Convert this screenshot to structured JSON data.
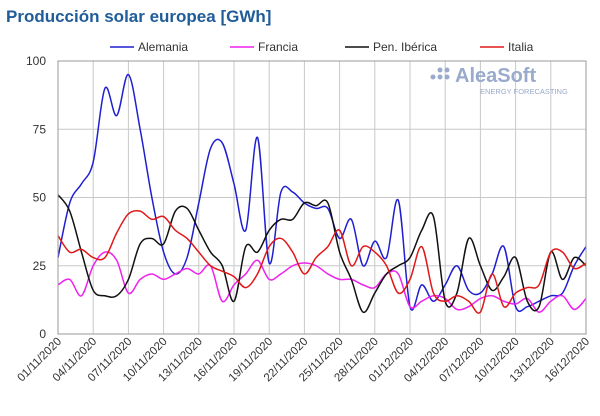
{
  "chart_data": {
    "type": "line",
    "title": "Producción solar europea [GWh]",
    "logo": {
      "name": "AleaSoft",
      "tagline": "ENERGY FORECASTING"
    },
    "categories": [
      "01/11/2020",
      null,
      null,
      "04/11/2020",
      null,
      null,
      "07/11/2020",
      null,
      null,
      "10/11/2020",
      null,
      null,
      "13/11/2020",
      null,
      null,
      "16/11/2020",
      null,
      null,
      "19/11/2020",
      null,
      null,
      "22/11/2020",
      null,
      null,
      "25/11/2020",
      null,
      null,
      "28/11/2020",
      null,
      null,
      "01/12/2020",
      null,
      null,
      "04/12/2020",
      null,
      null,
      "07/12/2020",
      null,
      null,
      "10/12/2020",
      null,
      null,
      "13/12/2020",
      null,
      null,
      "16/12/2020"
    ],
    "series": [
      {
        "name": "Alemania",
        "color": "#1f1fd0",
        "values": [
          28,
          48,
          55,
          63,
          90,
          80,
          95,
          75,
          50,
          30,
          22,
          28,
          48,
          68,
          70,
          55,
          38,
          72,
          26,
          52,
          52,
          48,
          46,
          46,
          35,
          42,
          25,
          34,
          28,
          49,
          10,
          18,
          12,
          18,
          25,
          16,
          15,
          22,
          32,
          10,
          10,
          12,
          14,
          15,
          25,
          32
        ]
      },
      {
        "name": "Francia",
        "color": "#ee22ee",
        "values": [
          18,
          20,
          14,
          25,
          30,
          27,
          15,
          20,
          22,
          20,
          22,
          24,
          22,
          25,
          12,
          18,
          22,
          27,
          20,
          22,
          25,
          26,
          25,
          22,
          20,
          20,
          18,
          17,
          22,
          22,
          10,
          12,
          14,
          13,
          9,
          10,
          13,
          14,
          12,
          11,
          13,
          8,
          12,
          14,
          9,
          13
        ]
      },
      {
        "name": "Pen. Ibérica",
        "color": "#111111",
        "values": [
          51,
          45,
          30,
          16,
          14,
          14,
          20,
          33,
          35,
          33,
          45,
          46,
          38,
          30,
          25,
          12,
          32,
          30,
          38,
          42,
          42,
          48,
          47,
          48,
          30,
          20,
          8,
          15,
          22,
          25,
          28,
          38,
          43,
          12,
          15,
          35,
          25,
          16,
          21,
          28,
          12,
          10,
          30,
          20,
          28,
          25
        ]
      },
      {
        "name": "Italia",
        "color": "#e01818",
        "values": [
          36,
          30,
          31,
          28,
          28,
          37,
          44,
          45,
          42,
          43,
          38,
          35,
          30,
          25,
          23,
          21,
          17,
          22,
          32,
          35,
          30,
          22,
          28,
          32,
          38,
          25,
          32,
          30,
          25,
          15,
          20,
          32,
          15,
          12,
          14,
          12,
          8,
          22,
          10,
          15,
          17,
          18,
          30,
          30,
          24,
          26
        ]
      }
    ],
    "ylim": [
      0,
      100
    ],
    "yticks": [
      0,
      25,
      50,
      75,
      100
    ],
    "grid": true,
    "legend": "top"
  }
}
